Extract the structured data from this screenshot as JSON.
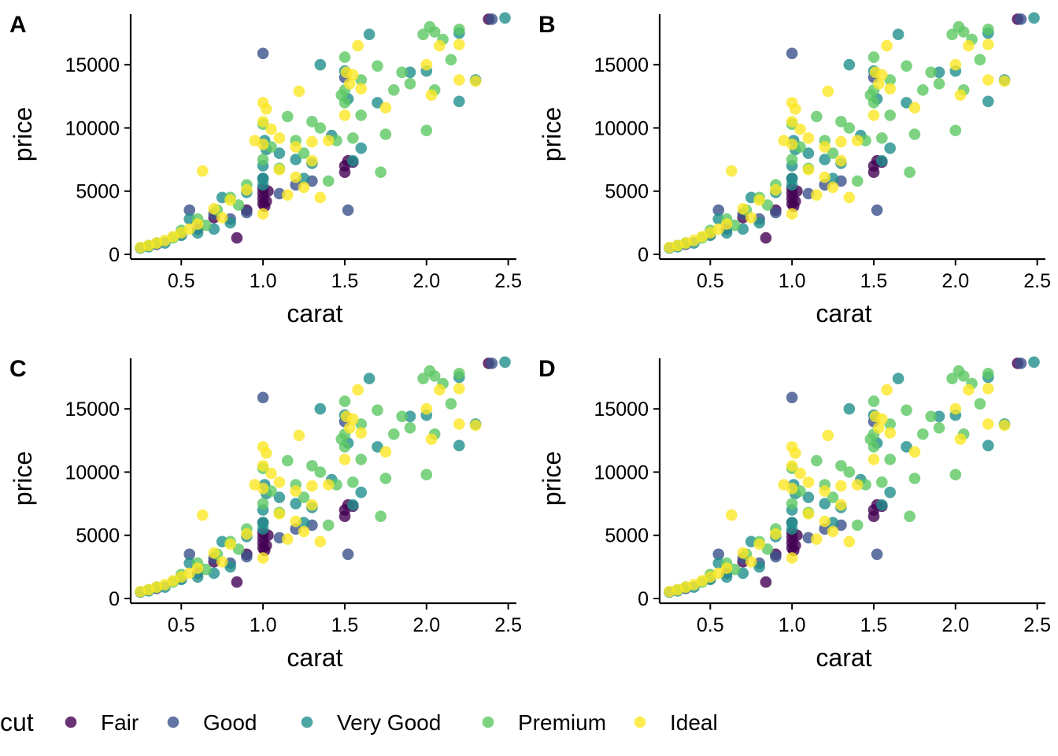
{
  "chart_data": {
    "type": "scatter",
    "layout": "2x2 grid of identical scatter plots",
    "panels": [
      {
        "tag": "A",
        "xlabel": "carat",
        "ylabel": "price"
      },
      {
        "tag": "B",
        "xlabel": "carat",
        "ylabel": "price"
      },
      {
        "tag": "C",
        "xlabel": "carat",
        "ylabel": "price"
      },
      {
        "tag": "D",
        "xlabel": "carat",
        "ylabel": "price"
      }
    ],
    "xlim": [
      0.2,
      2.55
    ],
    "ylim": [
      0,
      19000
    ],
    "xticks": [
      0.5,
      1.0,
      1.5,
      2.0,
      2.5
    ],
    "xtick_labels": [
      "0.5",
      "1.0",
      "1.5",
      "2.0",
      "2.5"
    ],
    "yticks": [
      0,
      5000,
      10000,
      15000
    ],
    "ytick_labels": [
      "0",
      "5000",
      "10000",
      "15000"
    ],
    "grid": false,
    "legend": {
      "title": "cut",
      "placement": "bottom",
      "entries": [
        "Fair",
        "Good",
        "Very Good",
        "Premium",
        "Ideal"
      ]
    },
    "colors": {
      "Fair": "#440154",
      "Good": "#3B528B",
      "Very Good": "#21908C",
      "Premium": "#5DC863",
      "Ideal": "#FDE725"
    },
    "series": [
      {
        "name": "Fair",
        "points": [
          [
            0.84,
            1300
          ],
          [
            1.0,
            4000
          ],
          [
            1.0,
            4400
          ],
          [
            1.0,
            4800
          ],
          [
            1.01,
            3800
          ],
          [
            1.02,
            4200
          ],
          [
            1.03,
            5000
          ],
          [
            1.5,
            6500
          ],
          [
            1.5,
            7000
          ],
          [
            1.52,
            7400
          ],
          [
            1.55,
            7300
          ],
          [
            2.38,
            18600
          ],
          [
            0.7,
            2900
          ],
          [
            0.9,
            3500
          ],
          [
            1.0,
            5200
          ]
        ]
      },
      {
        "name": "Good",
        "points": [
          [
            1.0,
            15900
          ],
          [
            0.55,
            3500
          ],
          [
            1.52,
            3500
          ],
          [
            2.4,
            18600
          ],
          [
            0.9,
            3300
          ],
          [
            1.0,
            6000
          ],
          [
            0.35,
            800
          ],
          [
            0.7,
            3200
          ],
          [
            1.2,
            5500
          ],
          [
            0.5,
            1600
          ],
          [
            0.8,
            2800
          ],
          [
            1.5,
            14000
          ],
          [
            1.1,
            4800
          ],
          [
            0.6,
            2000
          ],
          [
            1.3,
            5800
          ]
        ]
      },
      {
        "name": "Very Good",
        "points": [
          [
            2.48,
            18700
          ],
          [
            2.2,
            17500
          ],
          [
            1.65,
            17400
          ],
          [
            1.9,
            14400
          ],
          [
            2.0,
            14500
          ],
          [
            2.2,
            12100
          ],
          [
            2.3,
            13800
          ],
          [
            1.35,
            15000
          ],
          [
            1.5,
            14500
          ],
          [
            1.02,
            8300
          ],
          [
            1.0,
            7000
          ],
          [
            1.0,
            6000
          ],
          [
            1.0,
            5500
          ],
          [
            1.1,
            8000
          ],
          [
            1.2,
            7500
          ],
          [
            0.9,
            4900
          ],
          [
            0.75,
            4500
          ],
          [
            0.8,
            2500
          ],
          [
            0.7,
            2000
          ],
          [
            0.6,
            1700
          ],
          [
            0.5,
            1500
          ],
          [
            0.4,
            900
          ],
          [
            0.3,
            600
          ],
          [
            0.25,
            500
          ],
          [
            1.6,
            8400
          ],
          [
            1.55,
            7400
          ],
          [
            1.42,
            9400
          ],
          [
            1.7,
            12000
          ],
          [
            1.52,
            12300
          ],
          [
            1.01,
            9000
          ],
          [
            1.25,
            6000
          ],
          [
            1.3,
            7200
          ],
          [
            0.55,
            2800
          ]
        ]
      },
      {
        "name": "Premium",
        "points": [
          [
            2.02,
            18000
          ],
          [
            2.05,
            17600
          ],
          [
            1.5,
            15600
          ],
          [
            1.5,
            13000
          ],
          [
            1.6,
            11000
          ],
          [
            1.7,
            14900
          ],
          [
            1.75,
            9500
          ],
          [
            1.72,
            6500
          ],
          [
            1.48,
            12600
          ],
          [
            1.45,
            9000
          ],
          [
            2.0,
            9800
          ],
          [
            1.9,
            13500
          ],
          [
            1.85,
            14400
          ],
          [
            2.1,
            17000
          ],
          [
            2.2,
            17800
          ],
          [
            1.98,
            17400
          ],
          [
            1.15,
            10900
          ],
          [
            1.3,
            10500
          ],
          [
            1.2,
            9000
          ],
          [
            1.05,
            8500
          ],
          [
            1.0,
            7500
          ],
          [
            0.9,
            5500
          ],
          [
            0.8,
            4500
          ],
          [
            0.72,
            3500
          ],
          [
            0.6,
            2800
          ],
          [
            0.5,
            1900
          ],
          [
            0.45,
            1300
          ],
          [
            0.35,
            900
          ],
          [
            0.3,
            700
          ],
          [
            1.1,
            6800
          ],
          [
            1.25,
            8000
          ],
          [
            1.4,
            5800
          ],
          [
            1.55,
            9200
          ],
          [
            1.6,
            13800
          ],
          [
            2.05,
            13000
          ],
          [
            2.15,
            15400
          ],
          [
            1.8,
            13000
          ],
          [
            1.35,
            10000
          ],
          [
            1.0,
            10300
          ],
          [
            0.85,
            3900
          ],
          [
            0.65,
            2300
          ],
          [
            1.5,
            12000
          ]
        ]
      },
      {
        "name": "Ideal",
        "points": [
          [
            0.63,
            6600
          ],
          [
            1.22,
            12900
          ],
          [
            1.58,
            16500
          ],
          [
            2.08,
            16500
          ],
          [
            2.2,
            16600
          ],
          [
            2.3,
            13700
          ],
          [
            2.0,
            15000
          ],
          [
            2.03,
            12600
          ],
          [
            1.75,
            11600
          ],
          [
            1.55,
            14200
          ],
          [
            1.6,
            13100
          ],
          [
            1.5,
            11000
          ],
          [
            1.02,
            11500
          ],
          [
            1.0,
            10500
          ],
          [
            1.05,
            9900
          ],
          [
            1.1,
            9200
          ],
          [
            1.2,
            8500
          ],
          [
            1.3,
            8900
          ],
          [
            1.35,
            4500
          ],
          [
            1.25,
            5300
          ],
          [
            1.15,
            4700
          ],
          [
            1.0,
            3200
          ],
          [
            0.9,
            5100
          ],
          [
            0.8,
            4300
          ],
          [
            0.7,
            3600
          ],
          [
            0.6,
            2400
          ],
          [
            0.5,
            1700
          ],
          [
            0.45,
            1400
          ],
          [
            0.4,
            1100
          ],
          [
            0.35,
            900
          ],
          [
            0.3,
            700
          ],
          [
            0.25,
            550
          ],
          [
            1.1,
            6700
          ],
          [
            1.3,
            7400
          ],
          [
            1.53,
            13500
          ],
          [
            2.2,
            13800
          ],
          [
            1.0,
            8700
          ],
          [
            0.95,
            9000
          ],
          [
            1.4,
            9000
          ],
          [
            0.75,
            2900
          ],
          [
            0.55,
            2000
          ],
          [
            1.2,
            6100
          ],
          [
            1.0,
            12000
          ],
          [
            1.51,
            14400
          ]
        ]
      }
    ]
  }
}
